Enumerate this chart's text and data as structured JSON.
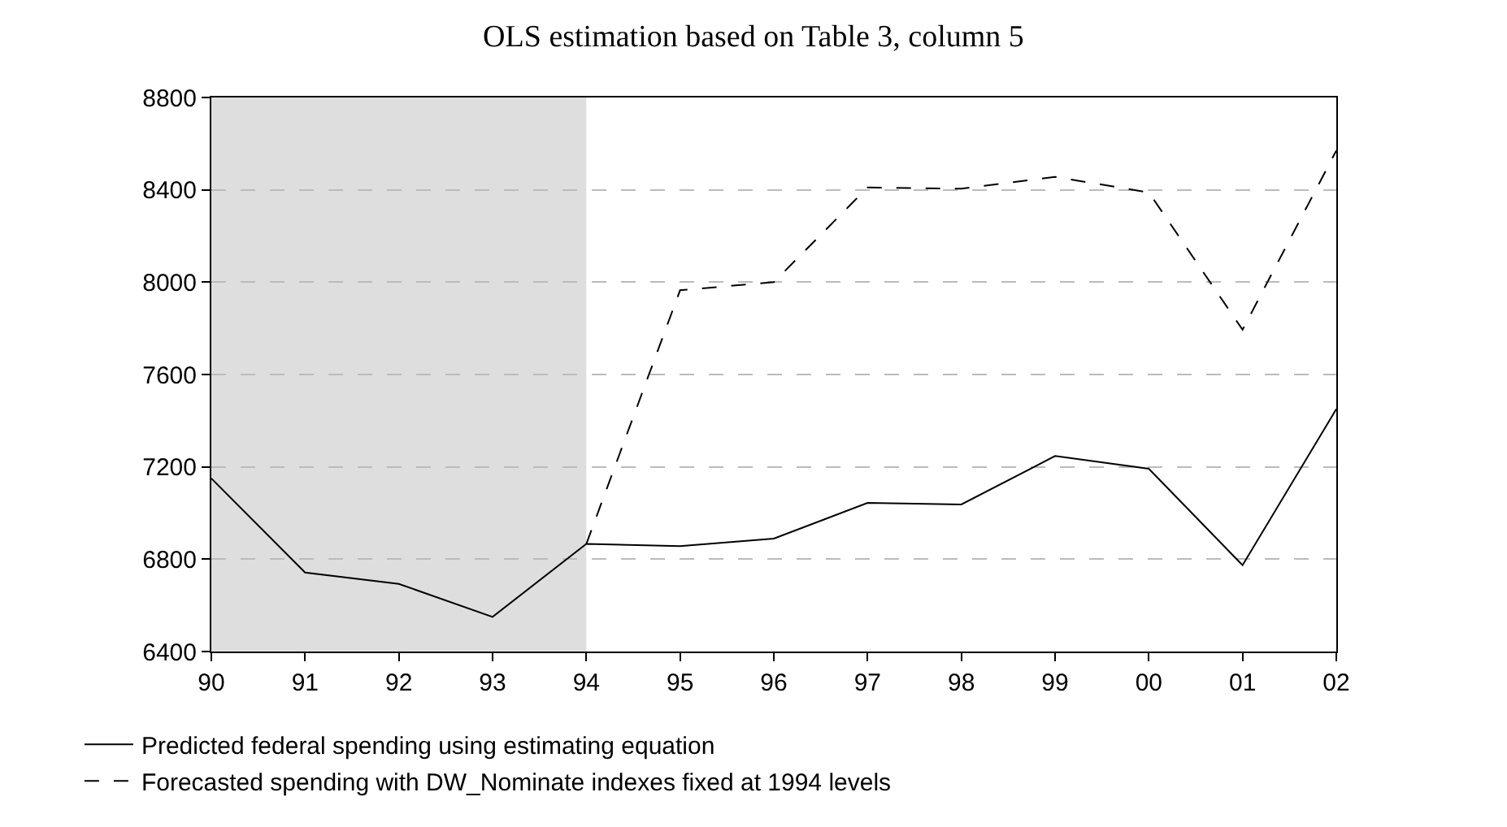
{
  "chart_data": {
    "type": "line",
    "title": "OLS estimation based on Table 3, column 5",
    "categories": [
      "90",
      "91",
      "92",
      "93",
      "94",
      "95",
      "96",
      "97",
      "98",
      "99",
      "00",
      "01",
      "02"
    ],
    "series": [
      {
        "name": "Predicted federal spending using estimating equation",
        "color": "#000000",
        "line_style": "solid",
        "values": [
          7150,
          6742,
          6693,
          6550,
          6866,
          6857,
          6889,
          7044,
          7037,
          7247,
          7192,
          6774,
          7450
        ]
      },
      {
        "name": "Forecasted spending with DW_Nominate indexes fixed at 1994 levels",
        "color": "#000000",
        "line_style": "dashed",
        "values": [
          null,
          null,
          null,
          null,
          6866,
          7965,
          8000,
          8410,
          8405,
          8456,
          8389,
          7794,
          8570
        ]
      }
    ],
    "ylim": [
      6400,
      8800
    ],
    "yticks": [
      6400,
      6800,
      7200,
      7600,
      8000,
      8400,
      8800
    ],
    "bands": [
      {
        "axis": "x",
        "from": "90",
        "to": "94",
        "color": "#dedede"
      }
    ],
    "grid": "y",
    "legend": "bottom",
    "marker": "none"
  }
}
